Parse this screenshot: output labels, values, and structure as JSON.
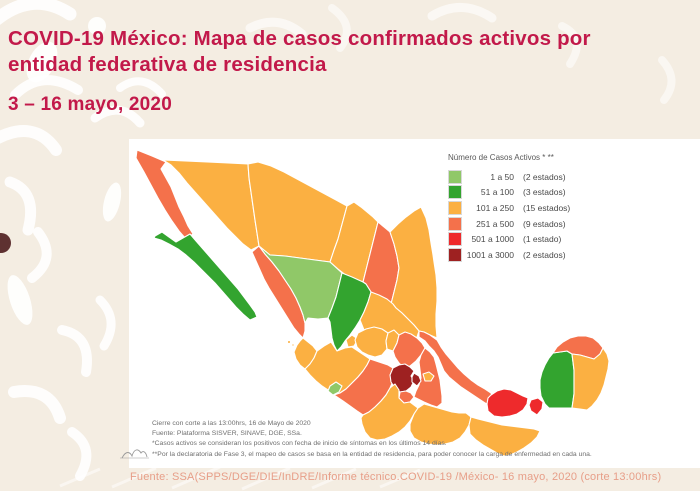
{
  "header": {
    "title_line1": "COVID-19 México: Mapa de casos confirmados activos por",
    "title_line2": "entidad federativa de residencia",
    "date_range": "3 – 16 mayo, 2020"
  },
  "legend": {
    "title": "Número de Casos Activos * **",
    "items": [
      {
        "range": "1 a 50",
        "count": "(2 estados)",
        "color": "#90C868"
      },
      {
        "range": "51 a 100",
        "count": "(3 estados)",
        "color": "#33A42F"
      },
      {
        "range": "101 a 250",
        "count": "(15 estados)",
        "color": "#FBB042"
      },
      {
        "range": "251 a 500",
        "count": "(9 estados)",
        "color": "#F4714B"
      },
      {
        "range": "501 a 1000",
        "count": "(1 estado)",
        "color": "#EE2A2C"
      },
      {
        "range": "1001 a 3000",
        "count": "(2 estados)",
        "color": "#9E2121"
      }
    ]
  },
  "notes": {
    "line1": "Cierre con corte a las 13:00hrs, 16 de Mayo de 2020",
    "line2": "Fuente: Plataforma SISVER, SINAVE, DGE, SSa.",
    "line3": "*Casos activos se consideran los positivos con fecha de inicio de síntomas en los últimos 14 días.",
    "line4": "**Por la declaratoria de Fase 3, el mapeo de casos se basa en la entidad de residencia, para poder conocer la carga de enfermedad en cada una."
  },
  "footer": {
    "source": "Fuente: SSA(SPPS/DGE/DIE/InDRE/Informe técnico.COVID-19 /México- 16 mayo, 2020 (corte 13:00hrs)"
  },
  "icons": {
    "watermark": "mountains-doodle"
  },
  "chart_data": {
    "type": "choropleth",
    "title": "Número de Casos Activos * **",
    "categories": [
      "1 a 50",
      "51 a 100",
      "101 a 250",
      "251 a 500",
      "501 a 1000",
      "1001 a 3000"
    ],
    "category_counts": [
      2,
      3,
      15,
      9,
      1,
      2
    ]
  },
  "map": {
    "states": [
      {
        "name": "Baja California",
        "category": "251 a 500"
      },
      {
        "name": "Baja California Sur",
        "category": "51 a 100"
      },
      {
        "name": "Sonora",
        "category": "101 a 250"
      },
      {
        "name": "Chihuahua",
        "category": "101 a 250"
      },
      {
        "name": "Coahuila",
        "category": "101 a 250"
      },
      {
        "name": "Nuevo León",
        "category": "251 a 500"
      },
      {
        "name": "Tamaulipas",
        "category": "101 a 250"
      },
      {
        "name": "Sinaloa",
        "category": "251 a 500"
      },
      {
        "name": "Durango",
        "category": "1 a 50"
      },
      {
        "name": "Zacatecas",
        "category": "51 a 100"
      },
      {
        "name": "Aguascalientes",
        "category": "101 a 250"
      },
      {
        "name": "San Luis Potosí",
        "category": "101 a 250"
      },
      {
        "name": "Nayarit",
        "category": "101 a 250"
      },
      {
        "name": "Jalisco",
        "category": "101 a 250"
      },
      {
        "name": "Colima",
        "category": "1 a 50"
      },
      {
        "name": "Michoacán",
        "category": "251 a 500"
      },
      {
        "name": "Guanajuato",
        "category": "101 a 250"
      },
      {
        "name": "Querétaro",
        "category": "101 a 250"
      },
      {
        "name": "Hidalgo",
        "category": "251 a 500"
      },
      {
        "name": "Estado de México",
        "category": "1001 a 3000"
      },
      {
        "name": "Ciudad de México",
        "category": "1001 a 3000"
      },
      {
        "name": "Tlaxcala",
        "category": "101 a 250"
      },
      {
        "name": "Morelos",
        "category": "251 a 500"
      },
      {
        "name": "Puebla",
        "category": "251 a 500"
      },
      {
        "name": "Veracruz",
        "category": "251 a 500"
      },
      {
        "name": "Guerrero",
        "category": "101 a 250"
      },
      {
        "name": "Oaxaca",
        "category": "101 a 250"
      },
      {
        "name": "Chiapas",
        "category": "101 a 250"
      },
      {
        "name": "Tabasco",
        "category": "501 a 1000"
      },
      {
        "name": "Campeche",
        "category": "51 a 100"
      },
      {
        "name": "Yucatán",
        "category": "251 a 500"
      },
      {
        "name": "Quintana Roo",
        "category": "101 a 250"
      }
    ]
  }
}
